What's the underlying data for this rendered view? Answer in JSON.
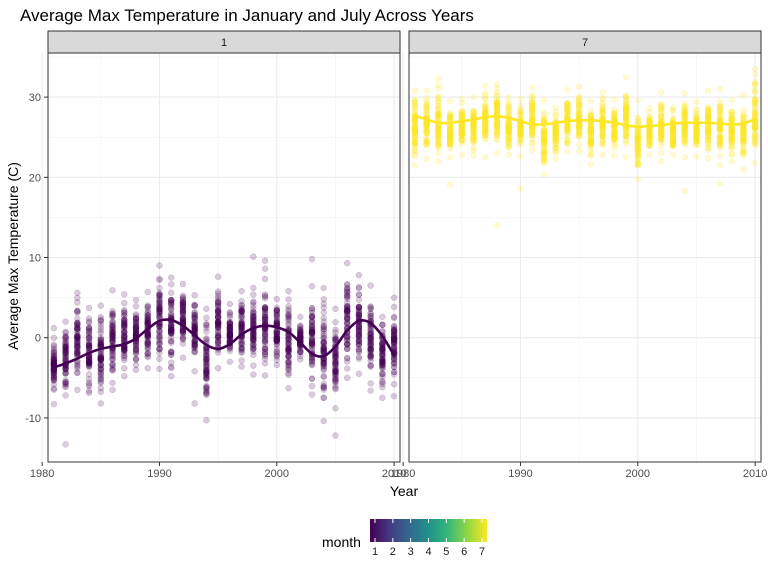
{
  "chart_data": {
    "type": "scatter",
    "title": "Average Max Temperature in January and July Across Years",
    "xlabel": "Year",
    "ylabel": "Average Max Temperature (C)",
    "xlim": [
      1980.5,
      2010.5
    ],
    "ylim": [
      -15.5,
      35.5
    ],
    "x_ticks": [
      1980,
      1990,
      2000,
      2010
    ],
    "y_ticks": [
      -10,
      0,
      10,
      20,
      30
    ],
    "grid": true,
    "facet_by": "month",
    "colors": {
      "month_1": "#440154",
      "month_7": "#fde725",
      "strip_fill": "#d9d9d9",
      "panel_border": "#333333",
      "grid": "#ebebeb"
    },
    "panels": [
      {
        "strip_label": "1",
        "month": 1,
        "point_color": "#440154",
        "point_alpha": 0.2,
        "years": [
          1981,
          1982,
          1983,
          1984,
          1985,
          1986,
          1987,
          1988,
          1989,
          1990,
          1991,
          1992,
          1993,
          1994,
          1995,
          1996,
          1997,
          1998,
          1999,
          2000,
          2001,
          2002,
          2003,
          2004,
          2005,
          2006,
          2007,
          2008,
          2009,
          2010
        ],
        "point_range_low": [
          -8.3,
          -7.2,
          -6.5,
          -6.9,
          -8.2,
          -6.5,
          -4.8,
          -4.0,
          -3.8,
          -3.9,
          -4.8,
          -2.5,
          -4.2,
          -10.3,
          -3.8,
          -3.0,
          -3.6,
          -4.6,
          -4.7,
          -3.4,
          -6.3,
          -2.7,
          -7.1,
          -10.4,
          -8.8,
          -5.0,
          -4.5,
          -5.7,
          -7.5,
          -5.8
        ],
        "point_range_high": [
          1.2,
          2.0,
          5.6,
          3.7,
          4.0,
          5.9,
          5.4,
          4.7,
          5.7,
          9.0,
          7.5,
          6.7,
          5.3,
          3.6,
          7.6,
          4.2,
          5.8,
          6.2,
          8.6,
          4.8,
          5.8,
          2.6,
          6.4,
          6.2,
          3.6,
          9.3,
          7.8,
          6.5,
          2.6,
          5.0
        ],
        "outliers": [
          {
            "x": 1982,
            "y": -13.3
          },
          {
            "x": 1993,
            "y": -8.2
          },
          {
            "x": 1998,
            "y": 10.1
          },
          {
            "x": 1999,
            "y": 9.6
          },
          {
            "x": 2003,
            "y": 9.8
          },
          {
            "x": 2005,
            "y": -12.2
          },
          {
            "x": 2008,
            "y": -6.6
          },
          {
            "x": 2010,
            "y": -7.3
          }
        ],
        "smooth": {
          "x": [
            1981,
            1982,
            1983,
            1984,
            1985,
            1986,
            1987,
            1988,
            1989,
            1990,
            1991,
            1992,
            1993,
            1994,
            1995,
            1996,
            1997,
            1998,
            1999,
            2000,
            2001,
            2002,
            2003,
            2004,
            2005,
            2006,
            2007,
            2008,
            2009,
            2010
          ],
          "y": [
            -3.7,
            -3.2,
            -2.6,
            -1.9,
            -1.4,
            -1.1,
            -0.8,
            -0.1,
            1.1,
            2.1,
            2.2,
            1.5,
            0.3,
            -0.9,
            -1.4,
            -0.8,
            0.4,
            1.2,
            1.5,
            1.3,
            0.7,
            -0.6,
            -2.0,
            -2.3,
            -1.1,
            0.9,
            2.1,
            1.8,
            0.2,
            -2.2
          ]
        }
      },
      {
        "strip_label": "7",
        "month": 7,
        "point_color": "#fde725",
        "point_alpha": 0.2,
        "years": [
          1981,
          1982,
          1983,
          1984,
          1985,
          1986,
          1987,
          1988,
          1989,
          1990,
          1991,
          1992,
          1993,
          1994,
          1995,
          1996,
          1997,
          1998,
          1999,
          2000,
          2001,
          2002,
          2003,
          2004,
          2005,
          2006,
          2007,
          2008,
          2009,
          2010
        ],
        "point_range_low": [
          21.5,
          22.3,
          22.0,
          22.5,
          22.8,
          22.7,
          22.5,
          23.0,
          22.8,
          22.6,
          23.4,
          20.4,
          22.3,
          23.2,
          23.3,
          21.6,
          22.8,
          22.7,
          22.5,
          19.8,
          22.8,
          22.0,
          22.8,
          22.5,
          22.6,
          22.4,
          21.5,
          22.0,
          21.0,
          21.8
        ],
        "point_range_high": [
          30.8,
          30.8,
          32.3,
          29.5,
          29.8,
          30.0,
          31.4,
          31.6,
          30.0,
          29.8,
          31.2,
          29.6,
          28.7,
          30.9,
          31.3,
          29.5,
          30.6,
          29.7,
          32.5,
          29.6,
          28.6,
          30.6,
          28.7,
          30.5,
          29.4,
          30.8,
          31.0,
          29.6,
          30.2,
          33.5
        ],
        "outliers": [
          {
            "x": 1984,
            "y": 19.1
          },
          {
            "x": 1988,
            "y": 14.0
          },
          {
            "x": 1990,
            "y": 18.6
          },
          {
            "x": 2004,
            "y": 18.3
          },
          {
            "x": 2007,
            "y": 19.2
          }
        ],
        "smooth": {
          "x": [
            1981,
            1982,
            1983,
            1984,
            1985,
            1986,
            1987,
            1988,
            1989,
            1990,
            1991,
            1992,
            1993,
            1994,
            1995,
            1996,
            1997,
            1998,
            1999,
            2000,
            2001,
            2002,
            2003,
            2004,
            2005,
            2006,
            2007,
            2008,
            2009,
            2010
          ],
          "y": [
            27.7,
            27.2,
            26.8,
            26.8,
            27.0,
            27.2,
            27.5,
            27.6,
            27.4,
            27.0,
            26.6,
            26.6,
            26.8,
            27.0,
            27.1,
            27.1,
            27.0,
            26.8,
            26.5,
            26.3,
            26.4,
            26.5,
            26.7,
            26.8,
            26.8,
            26.8,
            26.7,
            26.6,
            26.7,
            27.3
          ]
        }
      }
    ],
    "legend": {
      "title": "month",
      "placement": "bottom",
      "type": "colorbar",
      "ticks": [
        1,
        2,
        3,
        4,
        5,
        6,
        7
      ],
      "tick_labels": [
        "1",
        "2",
        "3",
        "4",
        "5",
        "6",
        "7"
      ],
      "colors": [
        "#440154",
        "#443983",
        "#31688e",
        "#21918c",
        "#35b779",
        "#90d743",
        "#fde725"
      ]
    }
  }
}
